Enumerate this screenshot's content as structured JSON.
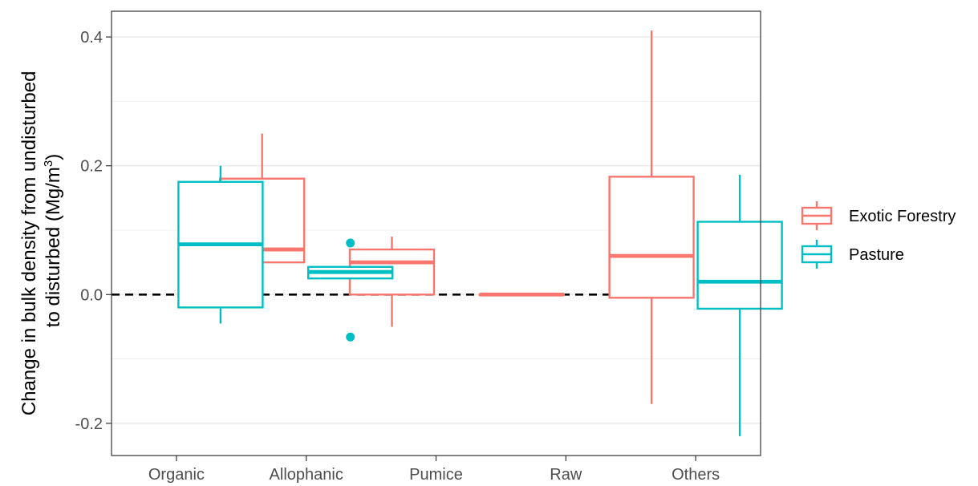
{
  "chart_data": {
    "type": "boxplot",
    "title": "",
    "xlabel": "",
    "ylabel_line1": "Change in bulk density from undisturbed",
    "ylabel_line2_pre": "to disturbed (Mg/m",
    "ylabel_sup": "3",
    "ylabel_line2_post": ")",
    "ylim": [
      -0.25,
      0.44
    ],
    "yticks": [
      -0.2,
      0.0,
      0.2,
      0.4
    ],
    "ytick_labels": [
      "-0.2",
      "0.0",
      "0.2",
      "0.4"
    ],
    "grid": true,
    "reference_line": 0.0,
    "categories": [
      "Organic",
      "Allophanic",
      "Pumice",
      "Raw",
      "Others"
    ],
    "legend_position": "right",
    "series": [
      {
        "name": "Exotic Forestry",
        "color": "#F8766D",
        "boxes": [
          null,
          {
            "category": "Allophanic",
            "whisker_low": -0.02,
            "q1": 0.05,
            "median": 0.07,
            "q3": 0.18,
            "whisker_high": 0.25,
            "outliers": []
          },
          {
            "category": "Pumice",
            "whisker_low": -0.05,
            "q1": 0.0,
            "median": 0.05,
            "q3": 0.07,
            "whisker_high": 0.09,
            "outliers": []
          },
          {
            "category": "Raw",
            "whisker_low": 0.0,
            "q1": 0.0,
            "median": 0.0,
            "q3": 0.0,
            "whisker_high": 0.0,
            "outliers": []
          },
          {
            "category": "Others",
            "whisker_low": -0.17,
            "q1": -0.005,
            "median": 0.06,
            "q3": 0.183,
            "whisker_high": 0.41,
            "outliers": []
          }
        ]
      },
      {
        "name": "Pasture",
        "color": "#00BFC4",
        "boxes": [
          {
            "category": "Organic",
            "whisker_low": -0.045,
            "q1": -0.02,
            "median": 0.078,
            "q3": 0.175,
            "whisker_high": 0.2,
            "outliers": []
          },
          {
            "category": "Allophanic",
            "whisker_low": 0.025,
            "q1": 0.025,
            "median": 0.035,
            "q3": 0.043,
            "whisker_high": 0.043,
            "outliers": [
              0.08,
              -0.066
            ]
          },
          null,
          null,
          {
            "category": "Others",
            "whisker_low": -0.22,
            "q1": -0.022,
            "median": 0.02,
            "q3": 0.113,
            "whisker_high": 0.186,
            "outliers": []
          }
        ]
      }
    ]
  }
}
